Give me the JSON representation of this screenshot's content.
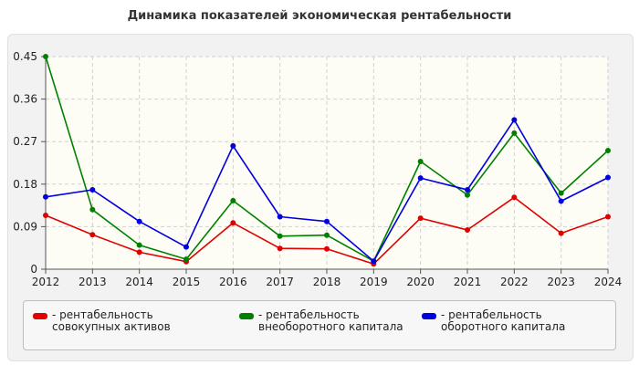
{
  "chart_data": {
    "type": "line",
    "title": "Динамика показателей экономическая рентабельности",
    "xlabel": "",
    "ylabel": "",
    "x": [
      "2012",
      "2013",
      "2014",
      "2015",
      "2016",
      "2017",
      "2018",
      "2019",
      "2020",
      "2021",
      "2022",
      "2023",
      "2024"
    ],
    "ylim": [
      0,
      0.45
    ],
    "yticks": [
      "0",
      "0.09",
      "0.18",
      "0.27",
      "0.36",
      "0.45"
    ],
    "grid": true,
    "legend_position": "bottom",
    "series": [
      {
        "name": "- рентабельность совокупных активов",
        "color": "#e00000",
        "values": [
          0.114,
          0.073,
          0.036,
          0.016,
          0.098,
          0.044,
          0.043,
          0.011,
          0.108,
          0.083,
          0.152,
          0.076,
          0.111
        ]
      },
      {
        "name": "- рентабельность внеоборотного капитала",
        "color": "#008000",
        "values": [
          0.45,
          0.126,
          0.051,
          0.021,
          0.145,
          0.07,
          0.072,
          0.017,
          0.228,
          0.157,
          0.288,
          0.161,
          0.251
        ]
      },
      {
        "name": "- рентабельность оборотного капитала",
        "color": "#0000e0",
        "values": [
          0.153,
          0.168,
          0.101,
          0.047,
          0.261,
          0.111,
          0.101,
          0.017,
          0.193,
          0.168,
          0.316,
          0.144,
          0.194
        ]
      }
    ]
  }
}
